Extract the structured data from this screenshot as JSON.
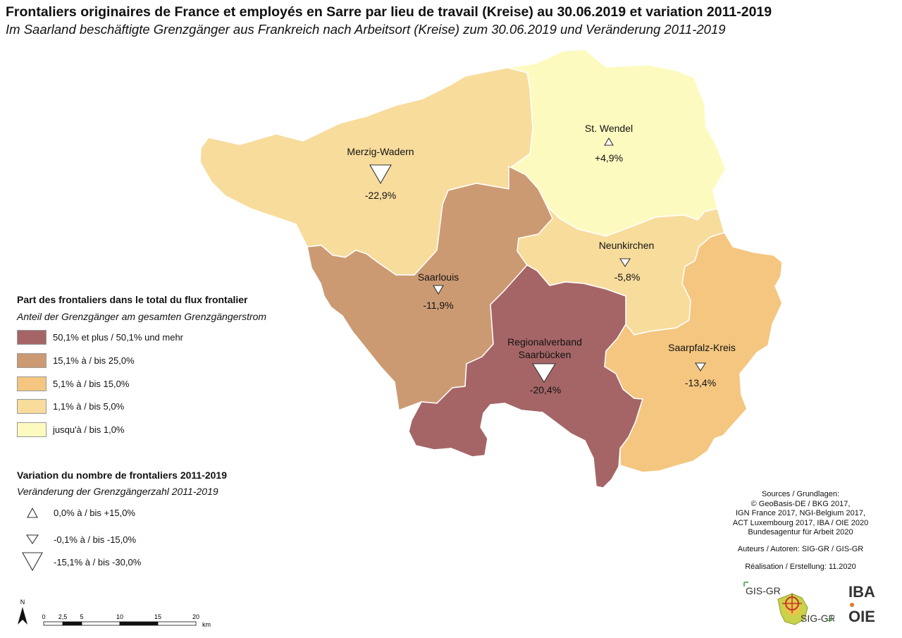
{
  "title": "Frontaliers originaires de France et employés en Sarre par lieu de travail (Kreise) au 30.06.2019 et variation 2011-2019",
  "subtitle": "Im Saarland beschäftigte Grenzgänger aus Frankreich nach Arbeitsort (Kreise) zum 30.06.2019 und Veränderung 2011-2019",
  "regions": [
    {
      "name": "Merzig-Wadern",
      "change": "-22,9%",
      "class_color": "#f8dc9c",
      "symbol": "large-down"
    },
    {
      "name": "St. Wendel",
      "change": "+4,9%",
      "class_color": "#fdfac0",
      "symbol": "up"
    },
    {
      "name": "Saarlouis",
      "change": "-11,9%",
      "class_color": "#cc9a72",
      "symbol": "small-down"
    },
    {
      "name": "Neunkirchen",
      "change": "-5,8%",
      "class_color": "#f8dc9c",
      "symbol": "small-down"
    },
    {
      "name_line1": "Regionalverband",
      "name_line2": "Saarbücken",
      "change": "-20,4%",
      "class_color": "#a56566",
      "symbol": "large-down"
    },
    {
      "name": "Saarpfalz-Kreis",
      "change": "-13,4%",
      "class_color": "#f4c680",
      "symbol": "small-down"
    }
  ],
  "legend_share": {
    "heading": "Part des frontaliers dans le total du flux frontalier",
    "subheading": "Anteil der Grenzgänger am gesamten Grenzgängerstrom",
    "classes": [
      {
        "label": "50,1% et plus / 50,1% und mehr",
        "color": "#a56566"
      },
      {
        "label": "15,1% à / bis 25,0%",
        "color": "#cc9a72"
      },
      {
        "label": "5,1% à / bis 15,0%",
        "color": "#f4c680"
      },
      {
        "label": "1,1% à / bis 5,0%",
        "color": "#f8dc9c"
      },
      {
        "label": "jusqu'à / bis 1,0%",
        "color": "#fdfac0"
      }
    ]
  },
  "legend_variation": {
    "heading": "Variation du nombre de frontaliers 2011-2019",
    "subheading": "Veränderung der Grenzgängerzahl 2011-2019",
    "items": [
      {
        "label": "0,0% à / bis +15,0%",
        "symbol": "up"
      },
      {
        "label": "-0,1% à / bis -15,0%",
        "symbol": "small-down"
      },
      {
        "label": "-15,1% à / bis -30,0%",
        "symbol": "large-down"
      }
    ]
  },
  "sources": {
    "heading": "Sources / Grundlagen:",
    "lines": [
      "© GeoBasis-DE / BKG 2017,",
      "IGN France 2017, NGI-Belgium 2017,",
      "ACT Luxembourg 2017, IBA / OIE 2020",
      "Bundesagentur für Arbeit 2020"
    ],
    "authors": "Auteurs / Autoren: SIG-GR / GIS-GR",
    "realisation": "Réalisation / Erstellung: 11.2020"
  },
  "scale": {
    "north": "N",
    "ticks": [
      "0",
      "2,5",
      "5",
      "10",
      "15",
      "20"
    ],
    "unit": "km"
  },
  "logos": {
    "gis_top": "GIS-GR",
    "sig_bottom": "SIG-GR",
    "iba": "IBA",
    "oie": "OIE"
  }
}
